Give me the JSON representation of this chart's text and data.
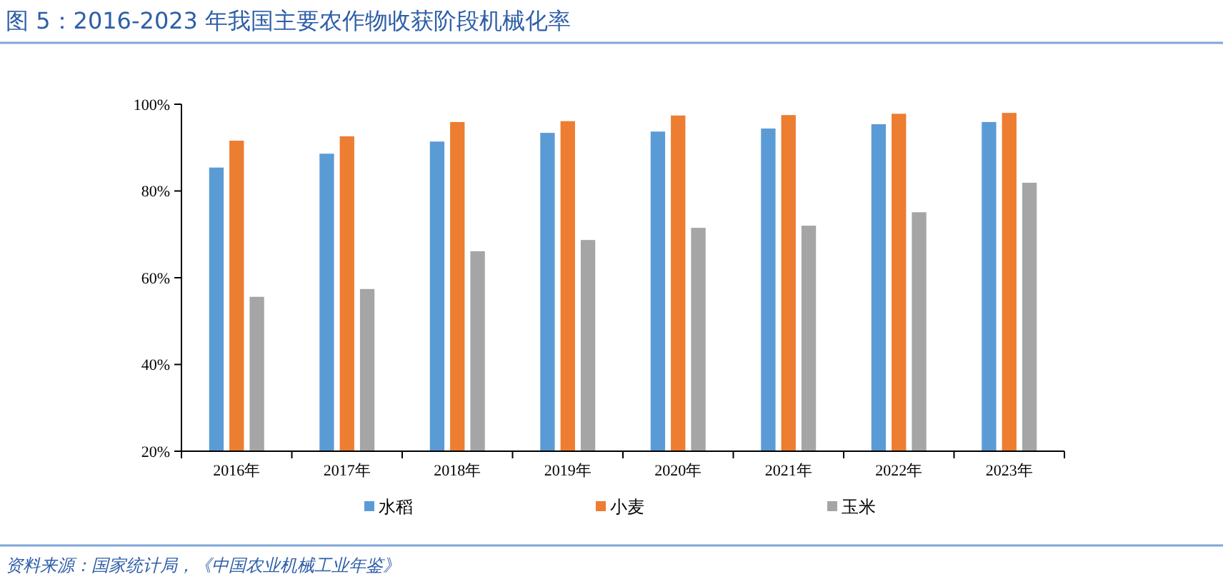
{
  "chart_data": {
    "type": "bar",
    "title": "图 5：2016-2023 年我国主要农作物收获阶段机械化率",
    "categories": [
      "2016年",
      "2017年",
      "2018年",
      "2019年",
      "2020年",
      "2021年",
      "2022年",
      "2023年"
    ],
    "series": [
      {
        "name": "水稻",
        "color": "#5b9bd5",
        "values": [
          85.4,
          88.6,
          91.4,
          93.4,
          93.7,
          94.4,
          95.4,
          95.9
        ]
      },
      {
        "name": "小麦",
        "color": "#ed7d31",
        "values": [
          91.6,
          92.6,
          95.9,
          96.1,
          97.4,
          97.5,
          97.8,
          98.0
        ]
      },
      {
        "name": "玉米",
        "color": "#a5a5a5",
        "values": [
          55.6,
          57.4,
          66.1,
          68.7,
          71.5,
          72.0,
          75.1,
          81.9
        ]
      }
    ],
    "ylim": [
      20,
      100
    ],
    "yticks": [
      {
        "value": 20,
        "label": "20%"
      },
      {
        "value": 40,
        "label": "40%"
      },
      {
        "value": 60,
        "label": "60%"
      },
      {
        "value": 80,
        "label": "80%"
      },
      {
        "value": 100,
        "label": "100%"
      }
    ],
    "grid": false,
    "legend": "bottom",
    "annotations": [
      "资料来源：国家统计局，《中国农业机械工业年鉴》"
    ]
  }
}
